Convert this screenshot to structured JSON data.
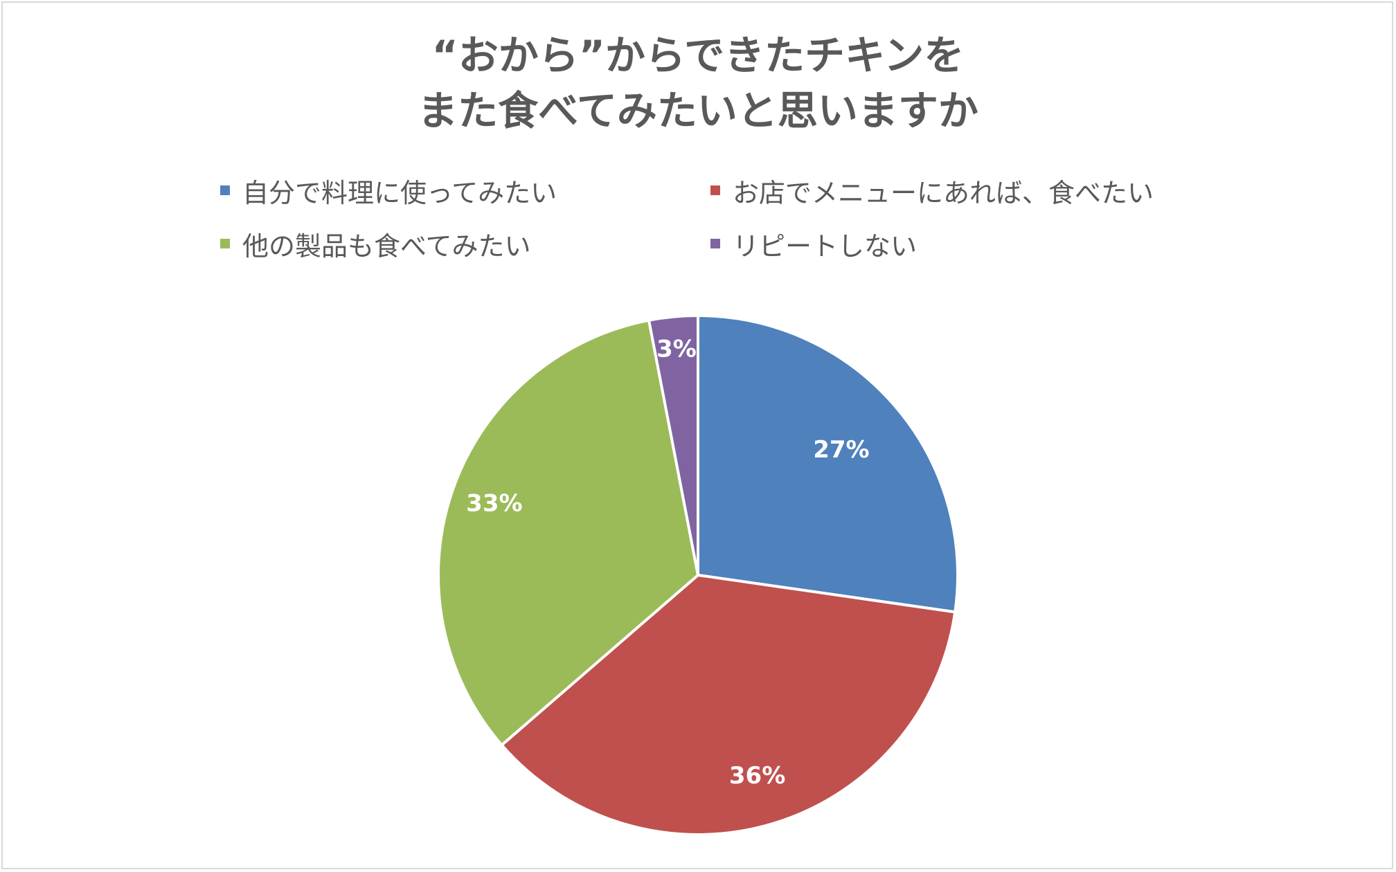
{
  "chart_data": {
    "type": "pie",
    "title_lines": [
      "“おから”からできたチキンを",
      "また食べてみたいと思いますか"
    ],
    "legend_placement": "top",
    "series": [
      {
        "name": "自分で料理に使ってみたい",
        "value": 27,
        "label": "27%",
        "color": "#4F81BD"
      },
      {
        "name": "お店でメニューにあれば、食べたい",
        "value": 36,
        "label": "36%",
        "color": "#C0504D"
      },
      {
        "name": "他の製品も食べてみたい",
        "value": 33,
        "label": "33%",
        "color": "#9BBB59"
      },
      {
        "name": "リピートしない",
        "value": 3,
        "label": "3%",
        "color": "#8064A2"
      }
    ]
  }
}
